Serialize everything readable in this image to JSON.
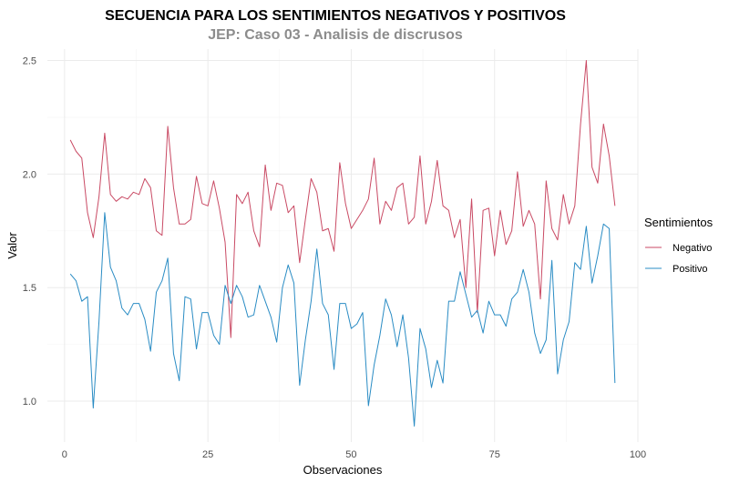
{
  "chart_data": {
    "type": "line",
    "title": "SECUENCIA PARA LOS SENTIMIENTOS NEGATIVOS Y POSITIVOS",
    "subtitle": "JEP: Caso 03 - Analisis de discrusos",
    "xlabel": "Observaciones",
    "ylabel": "Valor",
    "xlim": [
      -3,
      100
    ],
    "ylim": [
      0.82,
      2.55
    ],
    "xticks": [
      0,
      25,
      50,
      75,
      100
    ],
    "yticks": [
      1.0,
      1.5,
      2.0,
      2.5
    ],
    "grid": true,
    "legend": {
      "title": "Sentimientos",
      "position": "right"
    },
    "series": [
      {
        "name": "Negativo",
        "color": "#c94a64",
        "x": [
          1,
          2,
          3,
          4,
          5,
          6,
          7,
          8,
          9,
          10,
          11,
          12,
          13,
          14,
          15,
          16,
          17,
          18,
          19,
          20,
          21,
          22,
          23,
          24,
          25,
          26,
          27,
          28,
          29,
          30,
          31,
          32,
          33,
          34,
          35,
          36,
          37,
          38,
          39,
          40,
          41,
          42,
          43,
          44,
          45,
          46,
          47,
          48,
          49,
          50,
          51,
          52,
          53,
          54,
          55,
          56,
          57,
          58,
          59,
          60,
          61,
          62,
          63,
          64,
          65,
          66,
          67,
          68,
          69,
          70,
          71,
          72,
          73,
          74,
          75,
          76,
          77,
          78,
          79,
          80,
          81,
          82,
          83,
          84,
          85,
          86,
          87,
          88,
          89,
          90,
          91,
          92,
          93,
          94,
          95,
          96
        ],
        "values": [
          2.15,
          2.1,
          2.07,
          1.83,
          1.72,
          1.9,
          2.18,
          1.91,
          1.88,
          1.9,
          1.89,
          1.92,
          1.91,
          1.98,
          1.94,
          1.75,
          1.73,
          2.21,
          1.94,
          1.78,
          1.78,
          1.8,
          1.99,
          1.87,
          1.86,
          1.97,
          1.85,
          1.7,
          1.28,
          1.91,
          1.87,
          1.92,
          1.75,
          1.68,
          2.04,
          1.84,
          1.96,
          1.95,
          1.83,
          1.86,
          1.61,
          1.8,
          1.98,
          1.92,
          1.75,
          1.76,
          1.66,
          2.05,
          1.87,
          1.76,
          1.8,
          1.84,
          1.89,
          2.07,
          1.78,
          1.88,
          1.84,
          1.94,
          1.96,
          1.78,
          1.81,
          2.08,
          1.78,
          1.88,
          2.06,
          1.86,
          1.84,
          1.72,
          1.8,
          1.5,
          1.89,
          1.39,
          1.84,
          1.85,
          1.64,
          1.84,
          1.69,
          1.75,
          2.01,
          1.77,
          1.84,
          1.78,
          1.45,
          1.97,
          1.76,
          1.71,
          1.91,
          1.78,
          1.86,
          2.22,
          2.5,
          2.03,
          1.96,
          2.22,
          2.08,
          1.86
        ]
      },
      {
        "name": "Positivo",
        "color": "#2a8cc4",
        "x": [
          1,
          2,
          3,
          4,
          5,
          6,
          7,
          8,
          9,
          10,
          11,
          12,
          13,
          14,
          15,
          16,
          17,
          18,
          19,
          20,
          21,
          22,
          23,
          24,
          25,
          26,
          27,
          28,
          29,
          30,
          31,
          32,
          33,
          34,
          35,
          36,
          37,
          38,
          39,
          40,
          41,
          42,
          43,
          44,
          45,
          46,
          47,
          48,
          49,
          50,
          51,
          52,
          53,
          54,
          55,
          56,
          57,
          58,
          59,
          60,
          61,
          62,
          63,
          64,
          65,
          66,
          67,
          68,
          69,
          70,
          71,
          72,
          73,
          74,
          75,
          76,
          77,
          78,
          79,
          80,
          81,
          82,
          83,
          84,
          85,
          86,
          87,
          88,
          89,
          90,
          91,
          92,
          93,
          94,
          95,
          96
        ],
        "values": [
          1.56,
          1.53,
          1.44,
          1.46,
          0.97,
          1.35,
          1.83,
          1.59,
          1.53,
          1.41,
          1.38,
          1.43,
          1.43,
          1.36,
          1.22,
          1.48,
          1.53,
          1.63,
          1.21,
          1.09,
          1.46,
          1.45,
          1.23,
          1.39,
          1.39,
          1.29,
          1.25,
          1.51,
          1.43,
          1.51,
          1.46,
          1.37,
          1.38,
          1.51,
          1.44,
          1.37,
          1.26,
          1.5,
          1.6,
          1.52,
          1.07,
          1.27,
          1.44,
          1.67,
          1.43,
          1.38,
          1.14,
          1.43,
          1.43,
          1.32,
          1.34,
          1.39,
          0.98,
          1.16,
          1.29,
          1.45,
          1.38,
          1.24,
          1.38,
          1.19,
          0.89,
          1.32,
          1.23,
          1.06,
          1.18,
          1.08,
          1.44,
          1.44,
          1.57,
          1.47,
          1.37,
          1.4,
          1.3,
          1.44,
          1.38,
          1.38,
          1.33,
          1.45,
          1.48,
          1.58,
          1.48,
          1.3,
          1.21,
          1.27,
          1.62,
          1.12,
          1.27,
          1.35,
          1.61,
          1.58,
          1.77,
          1.52,
          1.64,
          1.78,
          1.76,
          1.08
        ]
      }
    ]
  }
}
